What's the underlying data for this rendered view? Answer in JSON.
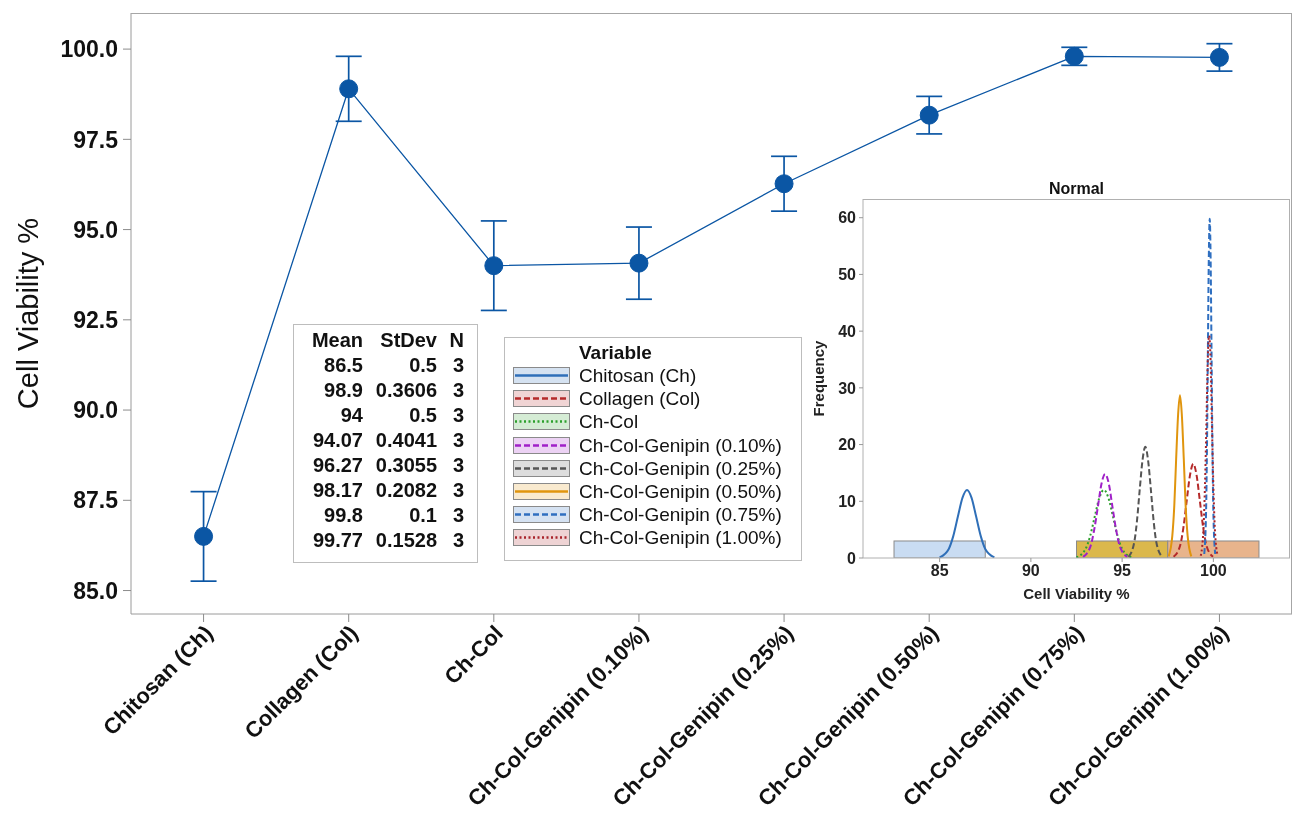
{
  "chart_data": [
    {
      "type": "line",
      "ylabel": "Cell Viability %",
      "categories": [
        "Chitosan (Ch)",
        "Collagen (Col)",
        "Ch-Col",
        "Ch-Col-Genipin (0.10%)",
        "Ch-Col-Genipin (0.25%)",
        "Ch-Col-Genipin (0.50%)",
        "Ch-Col-Genipin (0.75%)",
        "Ch-Col-Genipin (1.00%)"
      ],
      "values": [
        86.5,
        98.9,
        94,
        94.07,
        96.27,
        98.17,
        99.8,
        99.77
      ],
      "errors": [
        1.24,
        0.9,
        1.24,
        1.0,
        0.76,
        0.52,
        0.25,
        0.38
      ],
      "color": "#0b56a4",
      "marker": "circle",
      "line_style": "solid",
      "ylim": [
        84.35,
        101
      ],
      "yticks": [
        {
          "value": 85,
          "label": "85.0"
        },
        87.5,
        {
          "value": 90,
          "label": "90.0"
        },
        92.5,
        {
          "value": 95,
          "label": "95.0"
        },
        97.5,
        {
          "value": 100,
          "label": "100.0"
        }
      ]
    },
    {
      "type": "other",
      "categories": [
        "Mean",
        "StDev",
        "N"
      ],
      "series": [
        {
          "values": [
            86.5,
            0.5,
            3
          ]
        },
        {
          "values": [
            98.9,
            0.3606,
            3
          ]
        },
        {
          "values": [
            94,
            0.5,
            3
          ]
        },
        {
          "values": [
            94.07,
            0.4041,
            3
          ]
        },
        {
          "values": [
            96.27,
            0.3055,
            3
          ]
        },
        {
          "values": [
            98.17,
            0.2082,
            3
          ]
        },
        {
          "values": [
            99.8,
            0.1,
            3
          ]
        },
        {
          "values": [
            99.77,
            0.1528,
            3
          ]
        }
      ],
      "data_labels": true
    },
    {
      "type": "histogram",
      "title": "Normal",
      "xlabel": "Cell Viability %",
      "ylabel": "Frequency",
      "legend_title": "Variable",
      "legend": "left",
      "bins": [
        82.5,
        87.5,
        92.5,
        97.5,
        102.5
      ],
      "xlim": [
        80.8,
        104.2
      ],
      "xticks": [
        85,
        90,
        95,
        100
      ],
      "ylim": [
        0,
        63.3
      ],
      "yticks": [
        0,
        10,
        20,
        30,
        40,
        50,
        60
      ],
      "series": [
        {
          "colors": [
            "#c9dcf2",
            null,
            "#dbb84c",
            "#e8b48c"
          ],
          "values": [
            3,
            0,
            3,
            3
          ]
        },
        {
          "type": "line",
          "name": "Chitosan (Ch)",
          "color": "#2f6fb8",
          "line_style": "solid",
          "x": [
            85,
            85.5,
            85.75,
            86,
            86.25,
            86.5,
            86.75,
            87,
            87.25,
            87.5,
            88
          ],
          "values": [
            0.1,
            1.6,
            3.9,
            7.3,
            10.6,
            12,
            10.6,
            7.3,
            3.9,
            1.6,
            0.1
          ]
        },
        {
          "type": "line",
          "name": "Collagen (Col)",
          "color": "#b52a2a",
          "line_style": "dashed",
          "x": [
            97.82,
            98.18,
            98.36,
            98.54,
            98.72,
            98.9,
            99.08,
            99.26,
            99.44,
            99.62,
            99.98
          ],
          "values": [
            0.2,
            2.2,
            5.4,
            10.1,
            14.6,
            16.6,
            14.6,
            10.1,
            5.4,
            2.2,
            0.2
          ]
        },
        {
          "type": "line",
          "name": "Ch-Col",
          "color": "#2ca02c",
          "line_style": "dotted",
          "x": [
            92.5,
            93,
            93.25,
            93.5,
            93.75,
            94,
            94.25,
            94.5,
            94.75,
            95,
            95.5
          ],
          "values": [
            0.1,
            1.6,
            3.9,
            7.3,
            10.6,
            12,
            10.6,
            7.3,
            3.9,
            1.6,
            0.1
          ]
        },
        {
          "type": "line",
          "name": "Ch-Col-Genipin (0.10%)",
          "color": "#a020c8",
          "line_style": "dashed",
          "x": [
            92.86,
            93.26,
            93.46,
            93.67,
            93.87,
            94.07,
            94.27,
            94.47,
            94.68,
            94.88,
            95.28
          ],
          "values": [
            0.2,
            2,
            4.8,
            9,
            13.1,
            14.8,
            13.1,
            9,
            4.8,
            2,
            0.2
          ]
        },
        {
          "type": "line",
          "name": "Ch-Col-Genipin (0.25%)",
          "color": "#555555",
          "line_style": "dashed",
          "x": [
            95.35,
            95.66,
            95.81,
            95.96,
            96.12,
            96.27,
            96.42,
            96.58,
            96.73,
            96.88,
            97.19
          ],
          "values": [
            0.2,
            2.7,
            6.4,
            11.9,
            17.3,
            19.6,
            17.3,
            11.9,
            6.4,
            2.7,
            0.2
          ]
        },
        {
          "type": "line",
          "name": "Ch-Col-Genipin (0.50%)",
          "color": "#e0950e",
          "line_style": "solid",
          "x": [
            97.55,
            97.75,
            97.86,
            97.96,
            98.07,
            98.17,
            98.27,
            98.38,
            98.48,
            98.59,
            98.79
          ],
          "values": [
            0.3,
            3.9,
            9.3,
            17.4,
            25.4,
            28.7,
            25.4,
            17.4,
            9.3,
            3.9,
            0.3
          ]
        },
        {
          "type": "line",
          "name": "Ch-Col-Genipin (0.75%)",
          "color": "#2f6fc0",
          "line_style": "dashed",
          "x": [
            99.5,
            99.6,
            99.65,
            99.7,
            99.75,
            99.8,
            99.85,
            99.9,
            99.95,
            100,
            100.1
          ],
          "values": [
            0.7,
            8.1,
            19.4,
            36.3,
            52.8,
            59.8,
            52.8,
            36.3,
            19.4,
            8.1,
            0.7
          ]
        },
        {
          "type": "line",
          "name": "Ch-Col-Genipin (1.00%)",
          "color": "#a8232a",
          "line_style": "dotted",
          "x": [
            99.31,
            99.46,
            99.54,
            99.62,
            99.69,
            99.77,
            99.85,
            99.92,
            100,
            100.08,
            100.23
          ],
          "values": [
            0.4,
            5.3,
            12.7,
            23.8,
            34.6,
            39.2,
            34.6,
            23.8,
            12.7,
            5.3,
            0.4
          ]
        }
      ]
    }
  ]
}
